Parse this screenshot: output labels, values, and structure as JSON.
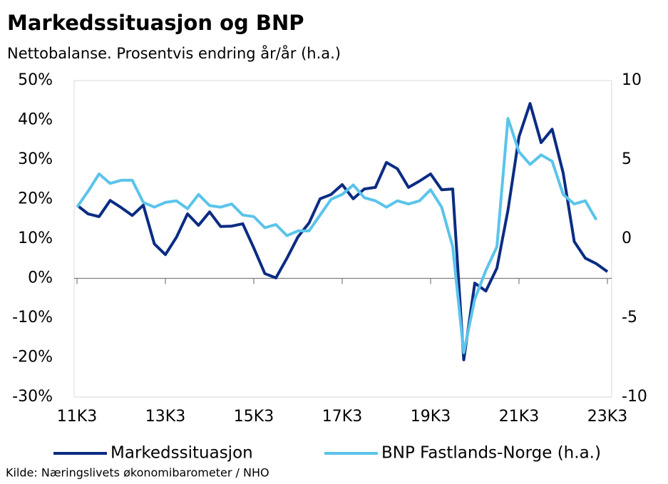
{
  "chart_data": {
    "type": "line",
    "title": "Markedssituasjon og BNP",
    "subtitle": "Nettobalanse. Prosentvis endring år/år (h.a.)",
    "source": "Kilde: Næringslivets økonomibarometer / NHO",
    "categories": [
      "11K3",
      null,
      null,
      null,
      null,
      null,
      null,
      null,
      "13K3",
      null,
      null,
      null,
      null,
      null,
      null,
      null,
      "15K3",
      null,
      null,
      null,
      null,
      null,
      null,
      null,
      "17K3",
      null,
      null,
      null,
      null,
      null,
      null,
      null,
      "19K3",
      null,
      null,
      null,
      null,
      null,
      null,
      null,
      "21K3",
      null,
      null,
      null,
      null,
      null,
      null,
      null,
      "23K3"
    ],
    "series": [
      {
        "name": "Markedssituasjon",
        "color": "#0b2c83",
        "axis": "y",
        "values": [
          18.5,
          16.3,
          15.6,
          19.7,
          17.9,
          15.9,
          18.5,
          8.7,
          6.0,
          10.4,
          16.3,
          13.4,
          16.8,
          13.1,
          13.2,
          13.8,
          7.7,
          1.2,
          0.1,
          5.1,
          10.5,
          14.0,
          20.1,
          21.2,
          23.7,
          20.1,
          22.6,
          23.0,
          29.3,
          27.7,
          23.0,
          24.6,
          26.4,
          22.4,
          22.6,
          -20.6,
          -1.2,
          -3.2,
          2.6,
          17.2,
          35.8,
          44.2,
          34.3,
          37.7,
          26.6,
          9.3,
          5.1,
          3.7,
          1.7
        ]
      },
      {
        "name": "BNP Fastlands-Norge (h.a.)",
        "color": "#5bc4ea",
        "axis": "y2",
        "values": [
          2.0,
          3.0,
          4.1,
          3.5,
          3.7,
          3.7,
          2.3,
          2.0,
          2.3,
          2.4,
          1.9,
          2.8,
          2.1,
          2.0,
          2.2,
          1.5,
          1.4,
          0.7,
          0.9,
          0.2,
          0.5,
          0.5,
          1.5,
          2.5,
          2.8,
          3.4,
          2.6,
          2.4,
          2.0,
          2.4,
          2.2,
          2.4,
          3.1,
          2.0,
          -0.5,
          -7.2,
          -3.8,
          -2.0,
          -0.5,
          7.6,
          5.5,
          4.7,
          5.3,
          4.9,
          2.8,
          2.2,
          2.4,
          1.2,
          null
        ]
      }
    ],
    "ylim": [
      -30,
      50
    ],
    "yticks": [
      {
        "value": -30,
        "label": "-30%"
      },
      {
        "value": -20,
        "label": "-20%"
      },
      {
        "value": -10,
        "label": "-10%"
      },
      {
        "value": 0,
        "label": "0%"
      },
      {
        "value": 10,
        "label": "10%"
      },
      {
        "value": 20,
        "label": "20%"
      },
      {
        "value": 30,
        "label": "30%"
      },
      {
        "value": 40,
        "label": "40%"
      },
      {
        "value": 50,
        "label": "50%"
      }
    ],
    "y2lim": [
      -10,
      10
    ],
    "y2ticks": [
      -10,
      -5,
      0,
      5,
      10
    ],
    "grid": false,
    "legend": "bottom"
  }
}
